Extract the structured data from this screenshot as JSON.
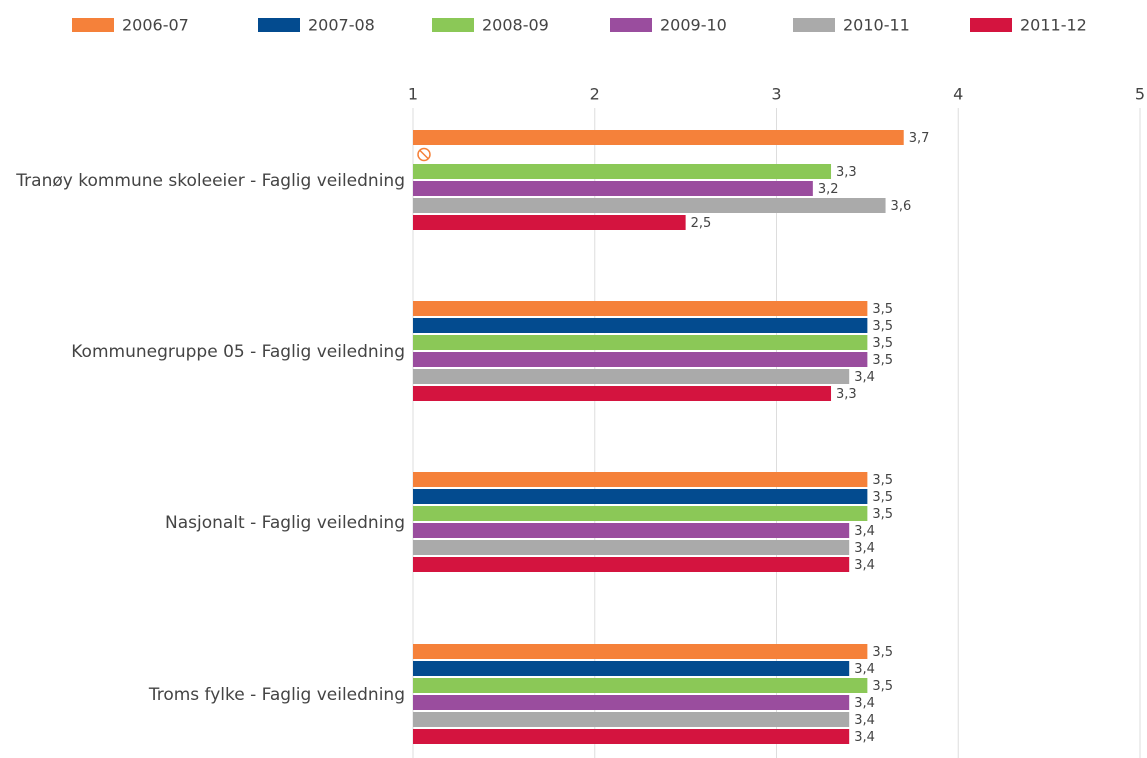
{
  "chart_data": {
    "type": "hbar",
    "categories": [
      "Tranøy kommune skoleeier - Faglig veiledning",
      "Kommunegruppe 05 - Faglig veiledning",
      "Nasjonalt - Faglig veiledning",
      "Troms fylke - Faglig veiledning"
    ],
    "series": [
      {
        "name": "2006-07",
        "color": "#f5813a",
        "values": [
          3.7,
          3.5,
          3.5,
          3.5
        ],
        "value_labels": [
          "3,7",
          "3,5",
          "3,5",
          "3,5"
        ]
      },
      {
        "name": "2007-08",
        "color": "#034b8f",
        "values": [
          null,
          3.5,
          3.5,
          3.4
        ],
        "value_labels": [
          null,
          "3,5",
          "3,5",
          "3,4"
        ]
      },
      {
        "name": "2008-09",
        "color": "#8bc857",
        "values": [
          3.3,
          3.5,
          3.5,
          3.5
        ],
        "value_labels": [
          "3,3",
          "3,5",
          "3,5",
          "3,5"
        ]
      },
      {
        "name": "2009-10",
        "color": "#9a4d9e",
        "values": [
          3.2,
          3.5,
          3.4,
          3.4
        ],
        "value_labels": [
          "3,2",
          "3,5",
          "3,4",
          "3,4"
        ]
      },
      {
        "name": "2010-11",
        "color": "#aaaaaa",
        "values": [
          3.6,
          3.4,
          3.4,
          3.4
        ],
        "value_labels": [
          "3,6",
          "3,4",
          "3,4",
          "3,4"
        ]
      },
      {
        "name": "2011-12",
        "color": "#d4143f",
        "values": [
          2.5,
          3.3,
          3.4,
          3.4
        ],
        "value_labels": [
          "2,5",
          "3,3",
          "3,4",
          "3,4"
        ]
      }
    ],
    "xlim": [
      1,
      5
    ],
    "xticks": [
      1,
      2,
      3,
      4,
      5
    ],
    "grid": true,
    "legend": "top"
  }
}
